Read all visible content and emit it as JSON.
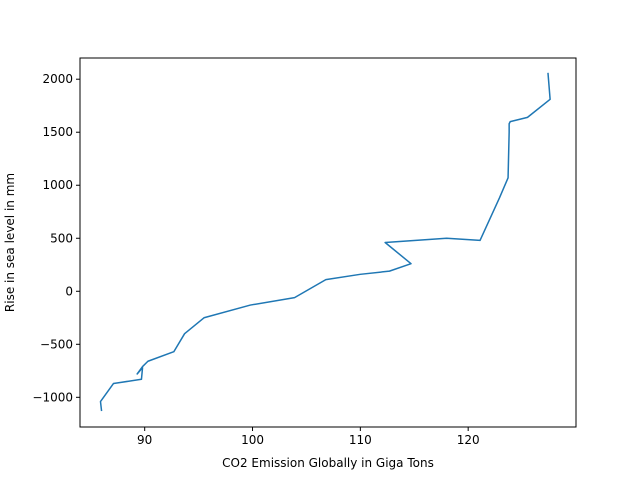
{
  "chart_data": {
    "type": "line",
    "title": "",
    "xlabel": "CO2 Emission Globally in Giga Tons",
    "ylabel": "Rise in sea level in mm",
    "xlim": [
      84,
      130
    ],
    "ylim": [
      -1280,
      2200
    ],
    "xticks": [
      90,
      100,
      110,
      120
    ],
    "yticks": [
      -1000,
      -500,
      0,
      500,
      1000,
      1500,
      2000
    ],
    "grid": false,
    "color": "#1f77b4",
    "series": [
      {
        "x": [
          86.0,
          85.9,
          87.1,
          89.7,
          89.8,
          89.3,
          89.8,
          90.3,
          92.7,
          93.7,
          95.5,
          99.8,
          103.9,
          106.8,
          110.0,
          112.7,
          114.7,
          112.3,
          118.0,
          121.1,
          122.9,
          123.7,
          123.8,
          123.8,
          123.9,
          125.5,
          127.6,
          127.4
        ],
        "y": [
          -1130,
          -1040,
          -870,
          -830,
          -720,
          -780,
          -710,
          -660,
          -570,
          -400,
          -250,
          -130,
          -60,
          110,
          160,
          190,
          260,
          460,
          500,
          480,
          880,
          1070,
          1500,
          1580,
          1600,
          1640,
          1810,
          2060
        ]
      }
    ]
  }
}
